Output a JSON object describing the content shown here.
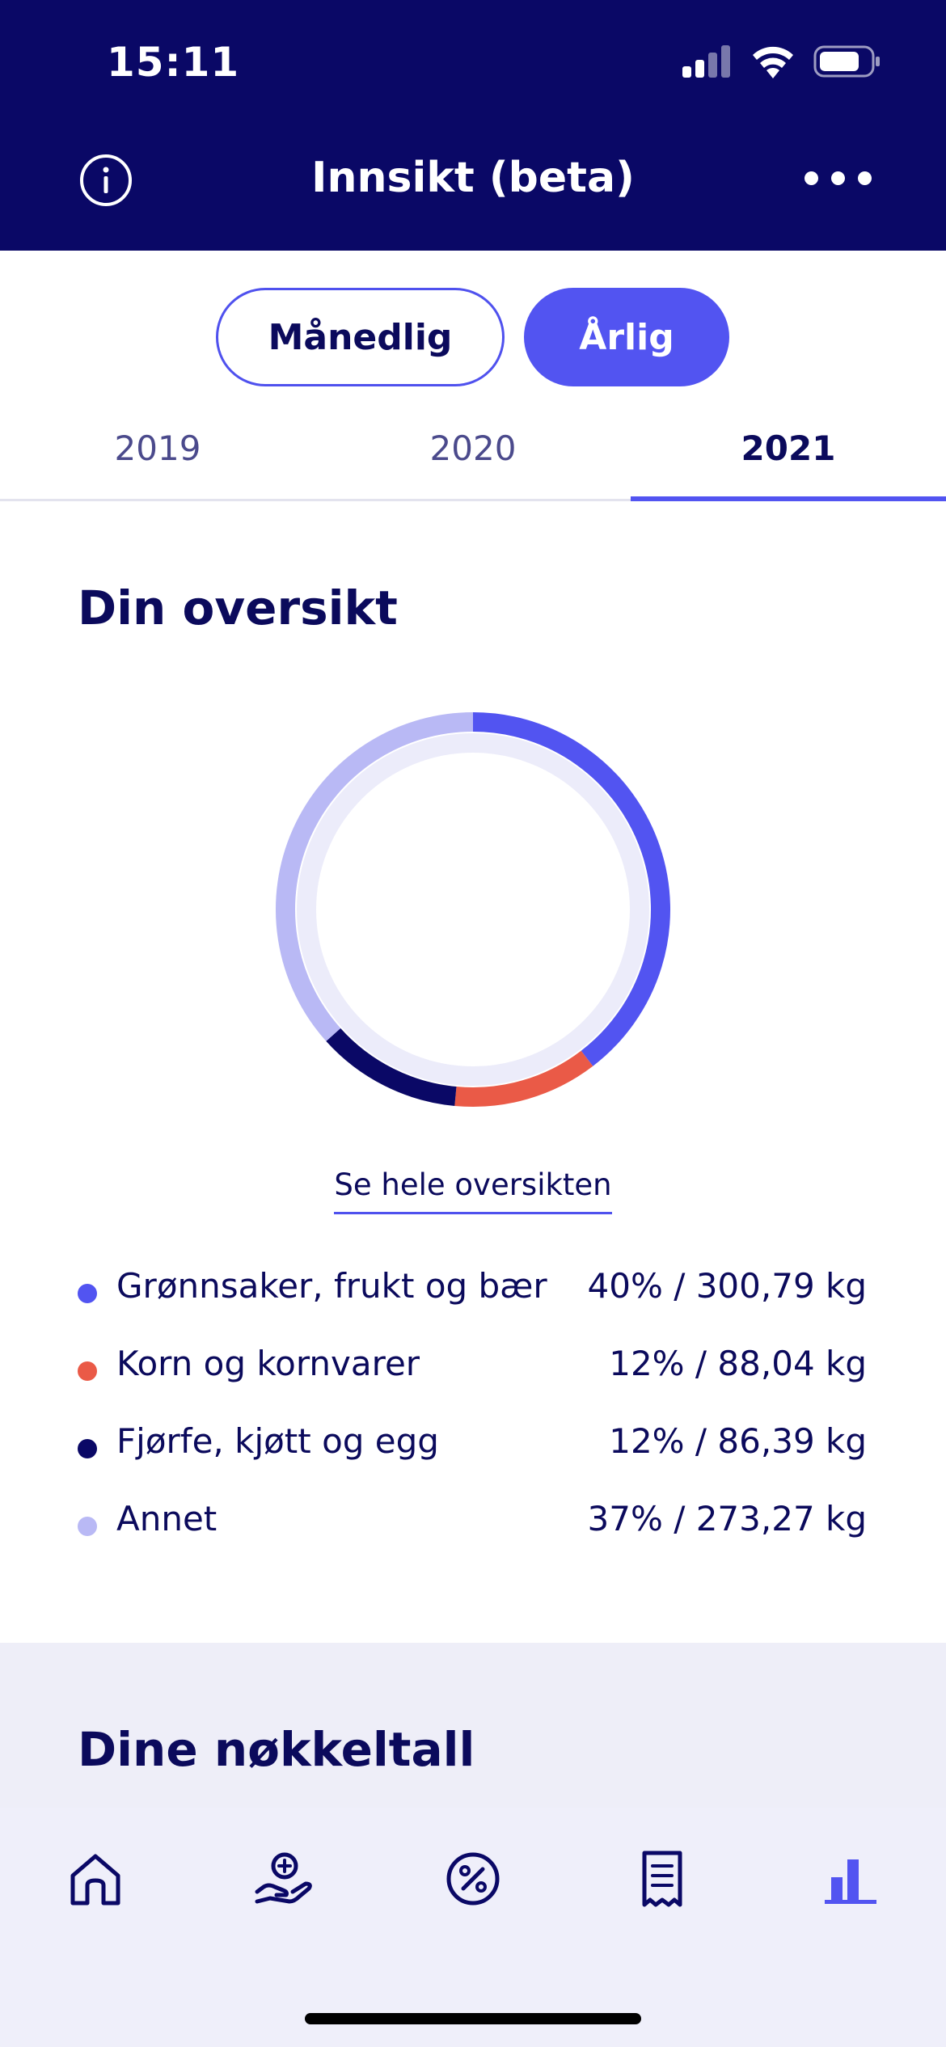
{
  "status_bar": {
    "time": "15:11"
  },
  "header": {
    "title": "Innsikt (beta)"
  },
  "period_toggle": {
    "monthly": "Månedlig",
    "yearly": "Årlig",
    "selected": "Årlig"
  },
  "year_tabs": [
    "2019",
    "2020",
    "2021"
  ],
  "selected_year": "2021",
  "overview": {
    "title": "Din oversikt",
    "link": "Se hele oversikten"
  },
  "chart_data": {
    "type": "pie",
    "categories": [
      "Grønnsaker, frukt og bær",
      "Korn og kornvarer",
      "Fjørfe, kjøtt og egg",
      "Annet"
    ],
    "values": [
      40,
      12,
      12,
      37
    ],
    "colors": [
      "#5254f1",
      "#ea5a47",
      "#0a0866",
      "#b9b9f5"
    ]
  },
  "legend": [
    {
      "name": "Grønnsaker, frukt og bær",
      "value": "40% / 300,79 kg",
      "color": "#5254f1"
    },
    {
      "name": "Korn og kornvarer",
      "value": "12% / 88,04 kg",
      "color": "#ea5a47"
    },
    {
      "name": "Fjørfe, kjøtt og egg",
      "value": "12% / 86,39 kg",
      "color": "#0a0866"
    },
    {
      "name": "Annet",
      "value": "37% / 273,27 kg",
      "color": "#b9b9f5"
    }
  ],
  "key_figures": {
    "title": "Dine nøkkeltall"
  },
  "tab_bar": {
    "icons": [
      "home-icon",
      "add-donation-icon",
      "discount-icon",
      "receipt-icon",
      "insights-icon"
    ],
    "active": "insights-icon"
  },
  "colors": {
    "primary": "#5254f1",
    "navy": "#0a0866",
    "track": "#ececfa"
  }
}
